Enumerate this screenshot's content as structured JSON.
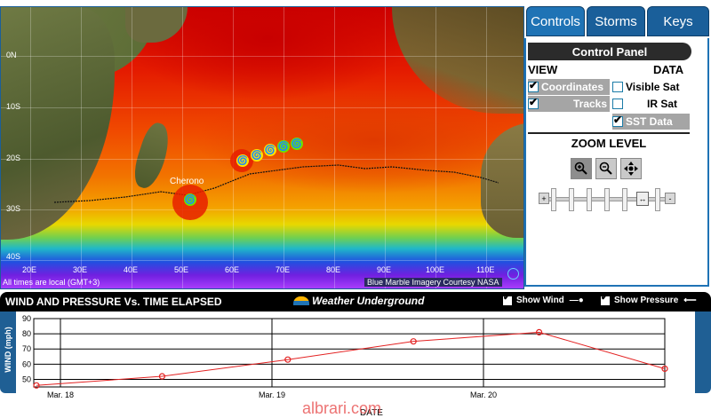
{
  "tabs": [
    {
      "label": "Controls",
      "active": true
    },
    {
      "label": "Storms",
      "active": false
    },
    {
      "label": "Keys",
      "active": false
    }
  ],
  "panel": {
    "title": "Control Panel",
    "view_label": "VIEW",
    "data_label": "DATA",
    "view_options": [
      {
        "label": "Coordinates",
        "checked": true
      },
      {
        "label": "Tracks",
        "checked": true
      }
    ],
    "data_options": [
      {
        "label": "Visible Sat",
        "checked": false
      },
      {
        "label": "IR Sat",
        "checked": false
      },
      {
        "label": "SST Data",
        "checked": true
      }
    ],
    "zoom_title": "ZOOM LEVEL",
    "zoom_buttons": [
      "zoom-in",
      "zoom-out",
      "pan"
    ],
    "slider_plus": "+",
    "slider_minus": "-",
    "slider_handle": "↔"
  },
  "map": {
    "lat_labels": [
      "0N",
      "10S",
      "20S",
      "30S",
      "40S"
    ],
    "lon_labels": [
      "20E",
      "30E",
      "40E",
      "50E",
      "60E",
      "70E",
      "80E",
      "90E",
      "100E",
      "110E"
    ],
    "storm_name": "Cherono",
    "time_note": "All times are local (GMT+3)",
    "credit": "Blue Marble Imagery Courtesy NASA"
  },
  "chart_header": {
    "title": "WIND AND PRESSURE Vs. TIME ELAPSED",
    "logo": "Weather Underground",
    "show_wind": "Show Wind",
    "show_pressure": "Show Pressure"
  },
  "chart_data": {
    "type": "line",
    "ylabel": "WIND (mph)",
    "xlabel": "DATE",
    "ylim": [
      45,
      90
    ],
    "yticks": [
      50,
      60,
      70,
      80,
      90
    ],
    "xticks": [
      "Mar. 18",
      "Mar. 19",
      "Mar. 20"
    ],
    "series": [
      {
        "color": "#e32222",
        "values": [
          46,
          52,
          63,
          75,
          81,
          57
        ]
      }
    ]
  },
  "watermark": "albrari.com"
}
